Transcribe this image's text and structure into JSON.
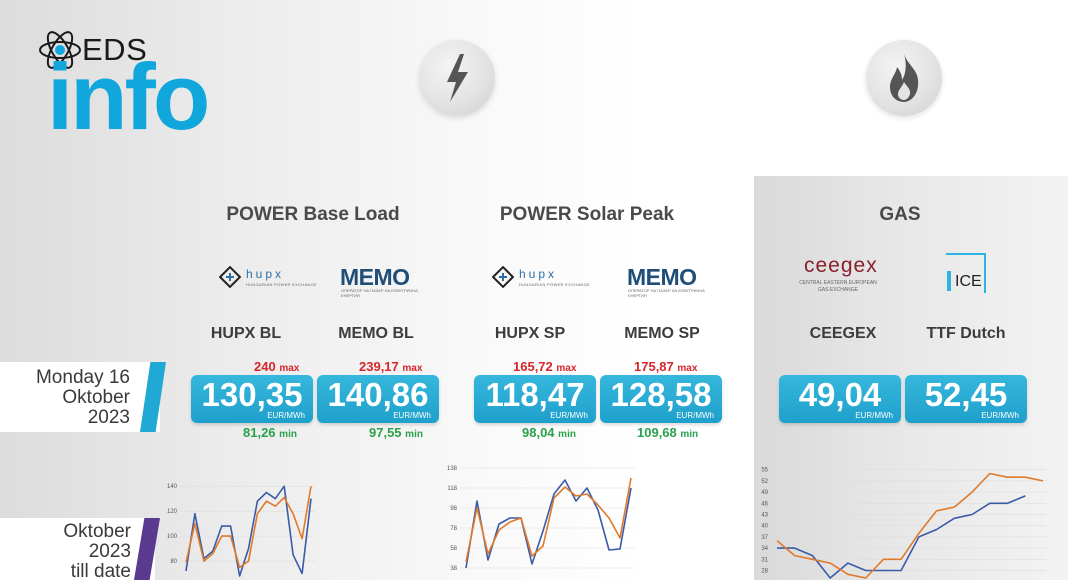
{
  "logo": {
    "eds": "EDS",
    "info": "info"
  },
  "sections": {
    "power_base": "POWER Base Load",
    "power_solar": "POWER Solar Peak",
    "gas": "GAS"
  },
  "dates": {
    "daily": [
      "Monday 16",
      "Oktober",
      "2023"
    ],
    "monthly": [
      "Oktober",
      "2023",
      "till date"
    ]
  },
  "logos": {
    "hupx": "hupx",
    "hupx_sub": "HUNGARIAN POWER EXCHANGE",
    "memo": "MEMO",
    "memo_sub": "ОПЕРАТОР НА ПАЗАР НА ЕЛЕКТРИЧНА ЕНЕРГИЯ",
    "ceegex": "ceegex",
    "ceegex_sub": [
      "CENTRAL EASTERN EUROPEAN",
      "GAS EXCHANGE"
    ],
    "ice": "ICE"
  },
  "markets": [
    {
      "name": "HUPX BL",
      "value": "130,35",
      "unit": "EUR/MWh",
      "max": "240",
      "min": "81,26"
    },
    {
      "name": "MEMO BL",
      "value": "140,86",
      "unit": "EUR/MWh",
      "max": "239,17",
      "min": "97,55"
    },
    {
      "name": "HUPX SP",
      "value": "118,47",
      "unit": "EUR/MWh",
      "max": "165,72",
      "min": "98,04"
    },
    {
      "name": "MEMO SP",
      "value": "128,58",
      "unit": "EUR/MWh",
      "max": "175,87",
      "min": "109,68"
    },
    {
      "name": "CEEGEX",
      "value": "49,04",
      "unit": "EUR/MWh"
    },
    {
      "name": "TTF Dutch",
      "value": "52,45",
      "unit": "EUR/MWh"
    }
  ],
  "labels": {
    "max": "max",
    "min": "min"
  },
  "colors": {
    "accent": "#11a6dc",
    "box": "#1ea0cc",
    "max": "#d6262b",
    "min": "#2aa14a",
    "series_a": "#3a5ba8",
    "series_b": "#e07a2a",
    "date_bar_daily": "#21a9d6",
    "date_bar_monthly": "#5a3a8f"
  },
  "icons": [
    "atom-icon",
    "lightning-icon",
    "flame-icon"
  ],
  "chart_data": [
    {
      "type": "line",
      "yticks": [
        60,
        80,
        100,
        120,
        140
      ],
      "ylim": [
        60,
        145
      ],
      "series": [
        {
          "values": [
            72,
            118,
            82,
            88,
            108,
            108,
            68,
            90,
            128,
            135,
            130,
            140,
            85,
            70,
            130
          ]
        },
        {
          "values": [
            79,
            110,
            80,
            86,
            100,
            100,
            75,
            80,
            118,
            128,
            124,
            131,
            118,
            98,
            140
          ]
        }
      ]
    },
    {
      "type": "line",
      "yticks": [
        38,
        58,
        78,
        98,
        118,
        138
      ],
      "ylim": [
        30,
        140
      ],
      "series": [
        {
          "values": [
            38,
            105,
            46,
            82,
            88,
            88,
            42,
            75,
            112,
            126,
            105,
            118,
            96,
            56,
            57,
            118
          ]
        },
        {
          "values": [
            44,
            98,
            52,
            76,
            84,
            88,
            50,
            60,
            108,
            119,
            110,
            112,
            101,
            88,
            68,
            128
          ]
        }
      ]
    },
    {
      "type": "line",
      "yticks": [
        28,
        31,
        34,
        37,
        40,
        43,
        46,
        49,
        52,
        55
      ],
      "ylim": [
        26,
        56
      ],
      "series": [
        {
          "values": [
            34,
            34,
            32,
            26,
            30,
            28,
            28,
            28,
            37,
            39,
            42,
            43,
            46,
            46,
            48
          ]
        },
        {
          "values": [
            36,
            32,
            31,
            30,
            27,
            26,
            31,
            31,
            38,
            44,
            45,
            49,
            54,
            53,
            53,
            52
          ]
        }
      ]
    }
  ]
}
